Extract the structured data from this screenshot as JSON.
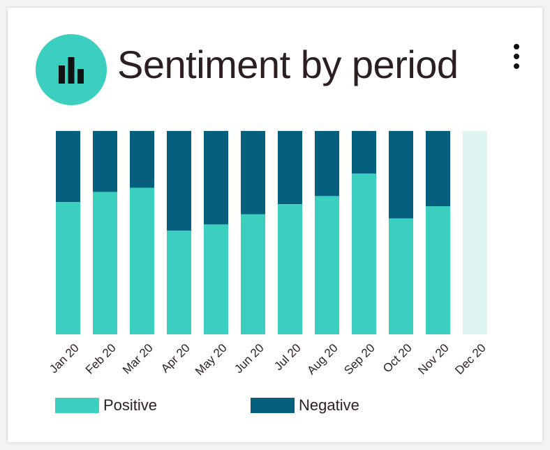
{
  "header": {
    "title": "Sentiment by period",
    "icon": "bar-chart-icon",
    "menu_icon": "more-vertical-icon"
  },
  "colors": {
    "positive": "#3acfbf",
    "negative": "#075f7e",
    "empty": "#dff5f2",
    "icon_background": "#3acfbf"
  },
  "chart_data": {
    "type": "bar",
    "stacked": true,
    "normalized": true,
    "categories": [
      "Jan 20",
      "Feb 20",
      "Mar 20",
      "Apr 20",
      "May 20",
      "Jun 20",
      "Jul 20",
      "Aug 20",
      "Sep 20",
      "Oct 20",
      "Nov 20",
      "Dec 20"
    ],
    "series": [
      {
        "name": "Positive",
        "values": [
          0.65,
          0.7,
          0.72,
          0.51,
          0.54,
          0.59,
          0.64,
          0.68,
          0.79,
          0.57,
          0.63,
          null
        ]
      },
      {
        "name": "Negative",
        "values": [
          0.35,
          0.3,
          0.28,
          0.49,
          0.46,
          0.41,
          0.36,
          0.32,
          0.21,
          0.43,
          0.37,
          null
        ]
      }
    ],
    "title": "Sentiment by period",
    "xlabel": "",
    "ylabel": "",
    "ylim": [
      0,
      1
    ],
    "grid": false,
    "legend_position": "bottom"
  },
  "legend": {
    "items": [
      {
        "label": "Positive",
        "color": "#3acfbf"
      },
      {
        "label": "Negative",
        "color": "#075f7e"
      }
    ]
  }
}
